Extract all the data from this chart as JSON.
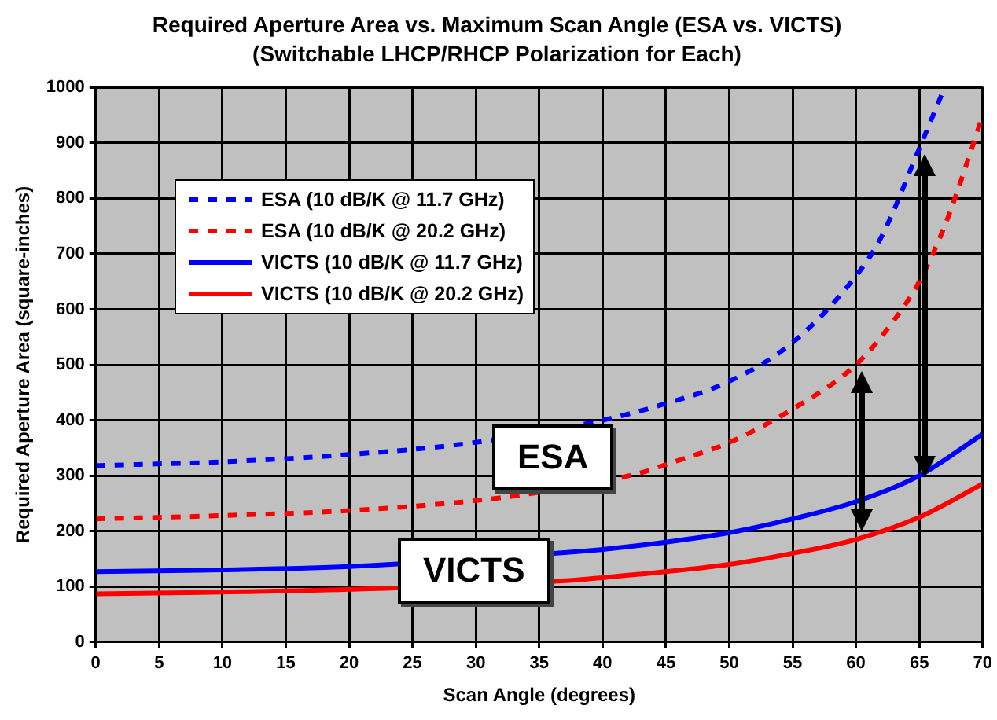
{
  "chart_data": {
    "type": "line",
    "title": "Required Aperture Area vs. Maximum Scan Angle (ESA vs. VICTS)",
    "subtitle": "(Switchable LHCP/RHCP Polarization for Each)",
    "xlabel": "Scan Angle (degrees)",
    "ylabel": "Required Aperture Area (square-inches)",
    "xlim": [
      0,
      70
    ],
    "xticks": [
      0,
      5,
      10,
      15,
      20,
      25,
      30,
      35,
      40,
      45,
      50,
      55,
      60,
      65,
      70
    ],
    "ylim": [
      0,
      1000
    ],
    "yticks": [
      0,
      100,
      200,
      300,
      400,
      500,
      600,
      700,
      800,
      900,
      1000
    ],
    "grid": true,
    "legend": "top left",
    "marker": "none",
    "series": [
      {
        "name": "ESA (10 dB/K @ 11.7 GHz)",
        "color": "#0000ff",
        "line_style": "dashed",
        "x": [
          0,
          10,
          20,
          30,
          40,
          45,
          50,
          55,
          60,
          62,
          65,
          67
        ],
        "values": [
          318,
          325,
          338,
          360,
          400,
          430,
          470,
          540,
          660,
          730,
          890,
          1000
        ]
      },
      {
        "name": "ESA (10 dB/K @ 20.2 GHz)",
        "color": "#ff0000",
        "line_style": "dashed",
        "x": [
          0,
          10,
          20,
          30,
          35,
          43,
          45,
          50,
          55,
          60,
          63,
          65,
          67,
          69,
          70
        ],
        "values": [
          222,
          228,
          237,
          255,
          270,
          305,
          320,
          360,
          420,
          500,
          580,
          650,
          750,
          880,
          950
        ]
      },
      {
        "name": "VICTS (10 dB/K @ 11.7 GHz)",
        "color": "#0000ff",
        "line_style": "solid",
        "x": [
          0,
          10,
          20,
          38,
          40,
          45,
          50,
          55,
          60,
          65,
          70
        ],
        "values": [
          127,
          130,
          136,
          163,
          167,
          180,
          197,
          222,
          253,
          300,
          375
        ]
      },
      {
        "name": "VICTS (10 dB/K @ 20.2 GHz)",
        "color": "#ff0000",
        "line_style": "solid",
        "x": [
          0,
          10,
          20,
          38,
          40,
          50,
          55,
          60,
          65,
          70
        ],
        "values": [
          87,
          90,
          95,
          112,
          116,
          140,
          160,
          185,
          225,
          285
        ]
      }
    ],
    "annotations": [
      "ESA",
      "VICTS"
    ]
  }
}
